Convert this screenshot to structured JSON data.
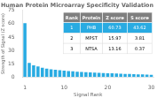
{
  "chart_data": {
    "type": "bar",
    "title": "Human Protein Microarray Specificity Validation",
    "xlabel": "Signal Rank",
    "ylabel": "Strength of Signal (Z score)",
    "x": [
      1,
      2,
      3,
      4,
      5,
      6,
      7,
      8,
      9,
      10,
      11,
      12,
      13,
      14,
      15,
      16,
      17,
      18,
      19,
      20,
      21,
      22,
      23,
      24,
      25,
      26,
      27,
      28,
      29,
      30
    ],
    "values": [
      60.73,
      15.97,
      13.16,
      11.8,
      10.5,
      9.5,
      8.7,
      8.1,
      7.6,
      7.1,
      6.7,
      6.3,
      6.0,
      5.7,
      5.4,
      5.1,
      4.9,
      4.7,
      4.5,
      4.3,
      4.1,
      3.9,
      3.7,
      3.5,
      3.4,
      3.2,
      3.0,
      2.9,
      2.7,
      2.5
    ],
    "color": "#29abe2",
    "xlim": [
      0.5,
      30.5
    ],
    "xticks": [
      1,
      10,
      20,
      30
    ],
    "ylim": [
      0,
      75
    ],
    "yticks": [
      0,
      15,
      30,
      45,
      60,
      75
    ],
    "grid": false,
    "table": {
      "columns": [
        "Rank",
        "Protein",
        "Z score",
        "S score"
      ],
      "rows": [
        [
          "1",
          "PHB",
          "60.73",
          "43.62"
        ],
        [
          "2",
          "MPST",
          "15.97",
          "3.81"
        ],
        [
          "3",
          "NTSA",
          "13.16",
          "0.37"
        ]
      ]
    }
  }
}
